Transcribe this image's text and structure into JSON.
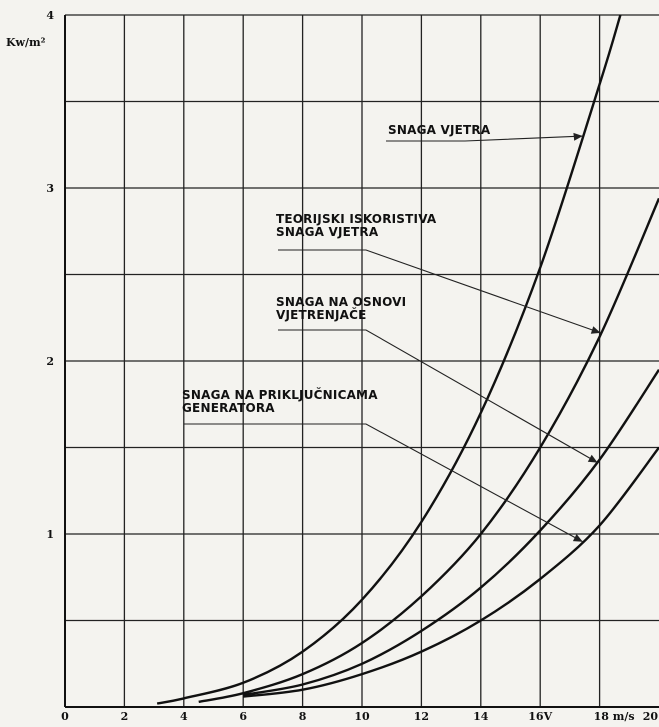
{
  "chart_data": {
    "type": "line",
    "title": "",
    "xlabel": "m/s",
    "ylabel": "Kw/m²",
    "xlim": [
      0,
      20
    ],
    "ylim": [
      0,
      4
    ],
    "x_ticks": [
      0,
      2,
      4,
      6,
      8,
      10,
      12,
      14,
      16,
      18,
      20
    ],
    "x_tick_labels": [
      "0",
      "2",
      "4",
      "6",
      "8",
      "10",
      "12",
      "14",
      "16V",
      "18 m/s",
      "20"
    ],
    "y_ticks": [
      1,
      2,
      3,
      4
    ],
    "y_tick_labels": [
      "1",
      "2",
      "3",
      "4"
    ],
    "y_unit": "Kw/m²",
    "grid": true,
    "series": [
      {
        "name": "SNAGA VJETRA",
        "x": [
          3.1,
          4,
          6,
          8,
          10,
          12,
          14,
          16,
          18,
          18.7
        ],
        "y": [
          0.02,
          0.05,
          0.14,
          0.32,
          0.62,
          1.07,
          1.7,
          2.54,
          3.6,
          4.0
        ]
      },
      {
        "name": "TEORIJSKI ISKORISTIVA SNAGA VJETRA",
        "x": [
          4.5,
          6,
          8,
          10,
          12,
          14,
          16,
          18,
          20
        ],
        "y": [
          0.03,
          0.08,
          0.19,
          0.37,
          0.64,
          1.0,
          1.5,
          2.14,
          2.94
        ]
      },
      {
        "name": "SNAGA NA OSNOVI VJETRENJAČE",
        "x": [
          6,
          8,
          10,
          12,
          14,
          16,
          18,
          20
        ],
        "y": [
          0.07,
          0.13,
          0.25,
          0.44,
          0.69,
          1.02,
          1.43,
          1.95
        ]
      },
      {
        "name": "SNAGA NA PRIKLJUČNICAMA GENERATORA",
        "x": [
          6,
          8,
          10,
          12,
          14,
          16,
          18,
          20
        ],
        "y": [
          0.06,
          0.1,
          0.19,
          0.32,
          0.5,
          0.74,
          1.05,
          1.5
        ]
      }
    ],
    "annotations": [
      {
        "lines": [
          "SNAGA VJETRA"
        ],
        "series": 0,
        "target_x": 17.5
      },
      {
        "lines": [
          "TEORIJSKI ISKORISTIVA",
          "SNAGA VJETRA"
        ],
        "series": 1,
        "target_x": 18.1
      },
      {
        "lines": [
          "SNAGA NA OSNOVI",
          "VJETRENJAČE"
        ],
        "series": 2,
        "target_x": 18.0
      },
      {
        "lines": [
          "SNAGA NA PRIKLJUČNICAMA",
          "GENERATORA"
        ],
        "series": 3,
        "target_x": 17.5
      }
    ],
    "colors": {
      "background": "#f4f3ef",
      "ink": "#111111"
    }
  }
}
